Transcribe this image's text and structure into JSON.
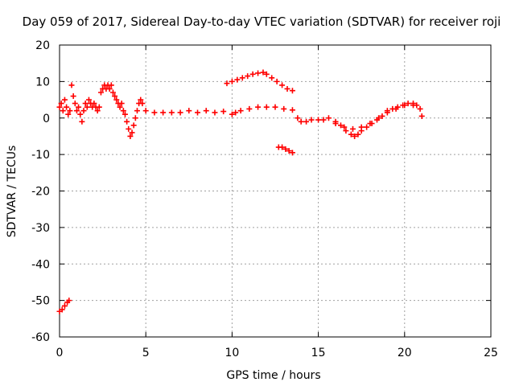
{
  "chart_data": {
    "type": "scatter",
    "title": "Day 059 of 2017, Sidereal Day-to-day VTEC variation (SDTVAR) for receiver roji",
    "xlabel": "GPS time / hours",
    "ylabel": "SDTVAR / TECUs",
    "xlim": [
      0,
      25
    ],
    "ylim": [
      -60,
      20
    ],
    "xticks": [
      0,
      5,
      10,
      15,
      20,
      25
    ],
    "yticks": [
      -60,
      -50,
      -40,
      -30,
      -20,
      -10,
      0,
      10,
      20
    ],
    "xtick_labels": [
      "0",
      "5",
      "10",
      "15",
      "20",
      "25"
    ],
    "ytick_labels": [
      "-60",
      "-50",
      "-40",
      "-30",
      "-20",
      "-10",
      "0",
      "10",
      "20"
    ],
    "grid": true,
    "marker": "plus",
    "color": "#ff0000",
    "series": [
      {
        "name": "main-band",
        "points": [
          [
            0.0,
            3
          ],
          [
            0.1,
            4
          ],
          [
            0.2,
            2
          ],
          [
            0.3,
            5
          ],
          [
            0.4,
            3
          ],
          [
            0.5,
            1
          ],
          [
            0.6,
            2
          ],
          [
            0.7,
            9
          ],
          [
            0.8,
            6
          ],
          [
            0.9,
            4
          ],
          [
            1.0,
            2
          ],
          [
            1.1,
            3
          ],
          [
            1.2,
            1
          ],
          [
            1.3,
            -1
          ],
          [
            1.4,
            2
          ],
          [
            1.5,
            4
          ],
          [
            1.6,
            3
          ],
          [
            1.7,
            5
          ],
          [
            1.8,
            4
          ],
          [
            1.9,
            3
          ],
          [
            2.0,
            4
          ],
          [
            2.1,
            3
          ],
          [
            2.2,
            2
          ],
          [
            2.3,
            3
          ],
          [
            2.4,
            7
          ],
          [
            2.5,
            8
          ],
          [
            2.6,
            9
          ],
          [
            2.7,
            8
          ],
          [
            2.8,
            9
          ],
          [
            2.9,
            8
          ],
          [
            3.0,
            9
          ],
          [
            3.1,
            7
          ],
          [
            3.2,
            6
          ],
          [
            3.3,
            5
          ],
          [
            3.4,
            4
          ],
          [
            3.5,
            3
          ],
          [
            3.6,
            4
          ],
          [
            3.7,
            2
          ],
          [
            3.8,
            1
          ],
          [
            3.9,
            -1
          ],
          [
            4.0,
            -3
          ],
          [
            4.1,
            -5
          ],
          [
            4.2,
            -4
          ],
          [
            4.3,
            -2
          ],
          [
            4.4,
            0
          ],
          [
            4.5,
            2
          ],
          [
            4.6,
            4
          ],
          [
            4.7,
            5
          ],
          [
            4.8,
            4
          ],
          [
            5.0,
            2
          ],
          [
            5.5,
            1.5
          ],
          [
            6.0,
            1.5
          ],
          [
            6.5,
            1.5
          ],
          [
            7.0,
            1.5
          ],
          [
            7.5,
            2
          ],
          [
            8.0,
            1.5
          ],
          [
            8.5,
            2
          ],
          [
            9.0,
            1.5
          ],
          [
            9.5,
            1.8
          ],
          [
            10.0,
            1
          ],
          [
            10.2,
            1.5
          ],
          [
            10.5,
            2
          ],
          [
            11.0,
            2.5
          ],
          [
            11.5,
            3
          ],
          [
            12.0,
            3
          ],
          [
            12.5,
            3
          ],
          [
            13.0,
            2.5
          ],
          [
            13.5,
            2.2
          ]
        ]
      },
      {
        "name": "upper-arc",
        "points": [
          [
            9.7,
            9.5
          ],
          [
            10.0,
            10
          ],
          [
            10.3,
            10.5
          ],
          [
            10.6,
            11
          ],
          [
            10.9,
            11.5
          ],
          [
            11.2,
            12
          ],
          [
            11.5,
            12.3
          ],
          [
            11.8,
            12.5
          ],
          [
            12.0,
            12
          ],
          [
            12.3,
            11
          ],
          [
            12.6,
            10
          ],
          [
            12.9,
            9
          ],
          [
            13.2,
            8
          ],
          [
            13.5,
            7.5
          ]
        ]
      },
      {
        "name": "lower-segment",
        "points": [
          [
            12.7,
            -8
          ],
          [
            12.9,
            -8
          ],
          [
            13.1,
            -8.5
          ],
          [
            13.3,
            -9
          ],
          [
            13.5,
            -9.5
          ]
        ]
      },
      {
        "name": "evening-band",
        "points": [
          [
            13.8,
            0
          ],
          [
            14.0,
            -1
          ],
          [
            14.3,
            -1
          ],
          [
            14.6,
            -0.5
          ],
          [
            15.0,
            -0.5
          ],
          [
            15.3,
            -0.5
          ],
          [
            15.6,
            0
          ],
          [
            16.0,
            -1
          ],
          [
            16.3,
            -2
          ],
          [
            16.6,
            -3.5
          ],
          [
            16.9,
            -4.5
          ],
          [
            17.1,
            -5
          ],
          [
            17.3,
            -4.5
          ],
          [
            17.5,
            -3.5
          ],
          [
            17.8,
            -2.5
          ],
          [
            18.1,
            -1.5
          ],
          [
            18.4,
            -0.5
          ],
          [
            18.7,
            0.5
          ],
          [
            19.0,
            1.5
          ],
          [
            19.3,
            2.5
          ],
          [
            19.6,
            3
          ],
          [
            19.9,
            3.5
          ],
          [
            20.2,
            4
          ],
          [
            20.5,
            4
          ],
          [
            20.7,
            3.5
          ],
          [
            20.9,
            2.5
          ],
          [
            21.0,
            0.5
          ]
        ]
      },
      {
        "name": "evening-secondary",
        "points": [
          [
            16.0,
            -1.5
          ],
          [
            16.5,
            -2.5
          ],
          [
            17.0,
            -3
          ],
          [
            17.5,
            -2.5
          ],
          [
            18.0,
            -1.5
          ],
          [
            18.5,
            0
          ],
          [
            19.0,
            2
          ],
          [
            19.5,
            2.5
          ],
          [
            20.0,
            3.5
          ],
          [
            20.5,
            3.5
          ]
        ]
      },
      {
        "name": "outlier-cluster",
        "points": [
          [
            0.0,
            -53
          ],
          [
            0.15,
            -52.5
          ],
          [
            0.3,
            -51.5
          ],
          [
            0.45,
            -50.5
          ],
          [
            0.55,
            -50
          ]
        ]
      }
    ]
  }
}
